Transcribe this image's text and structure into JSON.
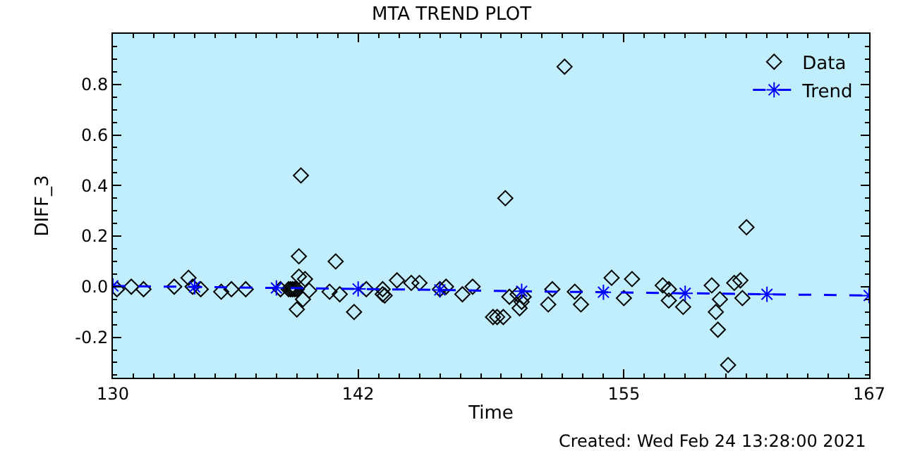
{
  "chart_data": {
    "type": "scatter",
    "title": "MTA TREND PLOT",
    "xlabel": "Time",
    "ylabel": "DIFF_3",
    "annotations": [
      "Created: Wed Feb 24 13:28:00 2021"
    ],
    "xlim": [
      130,
      167
    ],
    "xticks": [
      130,
      142,
      155,
      167
    ],
    "ylim": [
      -0.36,
      1.0
    ],
    "yticks": [
      {
        "value": -0.2,
        "label": "-0.2"
      },
      {
        "value": 0,
        "label": "0.0"
      },
      {
        "value": 0.2,
        "label": "0.2"
      },
      {
        "value": 0.4,
        "label": "0.4"
      },
      {
        "value": 0.6,
        "label": "0.6"
      },
      {
        "value": 0.8,
        "label": "0.8"
      }
    ],
    "grid": false,
    "legend": "top right",
    "series": [
      {
        "name": "Data",
        "marker": "diamond",
        "color": "#000000",
        "x": [
          130.2,
          130.9,
          131.5,
          133.0,
          133.7,
          133.9,
          134.3,
          135.3,
          135.8,
          136.5,
          138.2,
          138.6,
          138.7,
          138.8,
          138.9,
          139.0,
          139.0,
          139.1,
          139.1,
          139.2,
          139.3,
          139.4,
          139.6,
          140.6,
          140.9,
          141.1,
          141.8,
          142.4,
          143.2,
          143.2,
          143.3,
          143.9,
          144.6,
          145.0,
          146.0,
          146.3,
          147.1,
          147.6,
          148.6,
          148.8,
          149.1,
          149.2,
          149.4,
          149.8,
          149.9,
          150.0,
          150.1,
          151.3,
          151.5,
          152.1,
          152.6,
          152.9,
          154.4,
          155.0,
          155.4,
          156.9,
          157.2,
          157.2,
          157.9,
          159.3,
          159.5,
          159.6,
          159.7,
          160.1,
          160.4,
          160.7,
          160.8,
          161.0
        ],
        "values": [
          -0.01,
          0.0,
          -0.01,
          0.0,
          0.035,
          0.0,
          -0.01,
          -0.02,
          -0.01,
          -0.01,
          -0.01,
          -0.01,
          -0.01,
          -0.01,
          -0.01,
          -0.01,
          -0.09,
          0.12,
          0.04,
          0.44,
          -0.05,
          0.03,
          -0.015,
          -0.02,
          0.1,
          -0.03,
          -0.1,
          -0.01,
          -0.01,
          -0.03,
          -0.035,
          0.025,
          0.015,
          0.015,
          -0.01,
          0.0,
          -0.03,
          0.0,
          -0.12,
          -0.12,
          -0.12,
          0.35,
          -0.04,
          -0.03,
          -0.085,
          -0.06,
          -0.04,
          -0.07,
          -0.01,
          0.87,
          -0.02,
          -0.07,
          0.035,
          -0.045,
          0.03,
          0.005,
          -0.01,
          -0.055,
          -0.08,
          0.005,
          -0.1,
          -0.17,
          -0.05,
          -0.31,
          0.015,
          0.025,
          -0.045,
          0.235
        ]
      },
      {
        "name": "Trend",
        "type": "line",
        "marker": "cross",
        "line_style": "dashed",
        "color": "#0000ff",
        "x": [
          130,
          134,
          138,
          142,
          146,
          150,
          154,
          158,
          162,
          167
        ],
        "values": [
          0.003,
          -0.001,
          -0.005,
          -0.009,
          -0.013,
          -0.018,
          -0.022,
          -0.026,
          -0.03,
          -0.035
        ]
      }
    ]
  }
}
